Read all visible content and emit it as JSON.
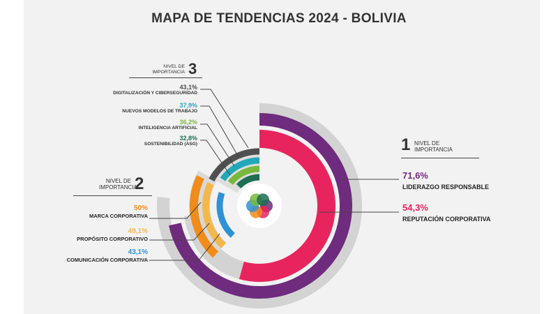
{
  "title": "MAPA DE TENDENCIAS 2024 - BOLIVIA",
  "levels": {
    "one": {
      "text_1": "NIVEL DE",
      "text_2": "IMPORTANCIA",
      "number": "1"
    },
    "two": {
      "text_1": "NIVEL DE",
      "text_2": "IMPORTANCIA",
      "number": "2"
    },
    "three": {
      "text_1": "NIVEL DE",
      "text_2": "IMPORTANCIA",
      "number": "3"
    }
  },
  "chart_data": {
    "type": "radial-bar",
    "title": "MAPA DE TENDENCIAS 2024 - BOLIVIA",
    "groups": [
      {
        "level": "1",
        "series": [
          {
            "name": "LIDERAZGO RESPONSABLE",
            "value": 71.6,
            "value_label": "71,6%",
            "color": "#6f2b7d"
          },
          {
            "name": "REPUTACIÓN CORPORATIVA",
            "value": 54.3,
            "value_label": "54,3%",
            "color": "#e8245e"
          }
        ]
      },
      {
        "level": "2",
        "series": [
          {
            "name": "MARCA CORPORATIVA",
            "value": 50.0,
            "value_label": "50%",
            "color": "#f08c1a"
          },
          {
            "name": "PROPÓSITO CORPORATIVO",
            "value": 49.1,
            "value_label": "49,1%",
            "color": "#f2b84b"
          },
          {
            "name": "COMUNICACIÓN CORPORATIVA",
            "value": 43.1,
            "value_label": "43,1%",
            "color": "#2e92d6"
          }
        ]
      },
      {
        "level": "3",
        "series": [
          {
            "name": "DIGITALIZACIÓN Y CIBERSEGURIDAD",
            "value": 43.1,
            "value_label": "43,1%",
            "color": "#4f4f4f"
          },
          {
            "name": "NUEVOS MODELOS DE TRABAJO",
            "value": 37.9,
            "value_label": "37,9%",
            "color": "#22a8b8"
          },
          {
            "name": "INTELIGENCIA ARTIFICIAL",
            "value": 36.2,
            "value_label": "36,2%",
            "color": "#78b83d"
          },
          {
            "name": "SOSTENIBILIDAD (ASG)",
            "value": 32.8,
            "value_label": "32,8%",
            "color": "#1d6e52"
          }
        ]
      }
    ]
  },
  "center_colors": [
    "#6f2b7d",
    "#e8245e",
    "#f08c1a",
    "#2e92d6",
    "#78b83d",
    "#1d6e52"
  ]
}
